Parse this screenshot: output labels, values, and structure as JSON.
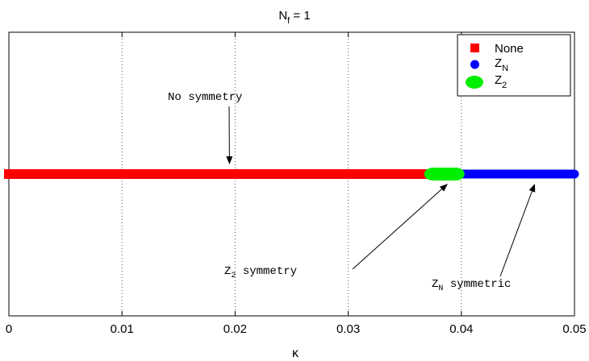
{
  "chart_data": {
    "type": "scatter",
    "title": {
      "base": "N",
      "sub": "f",
      "rest": " = 1"
    },
    "xlabel": "κ",
    "ylabel": "",
    "xlim": [
      0,
      0.05
    ],
    "ylim": [
      0,
      1
    ],
    "xticks": [
      0,
      0.01,
      0.02,
      0.03,
      0.04,
      0.05
    ],
    "xtick_labels": [
      "0",
      "0.01",
      "0.02",
      "0.03",
      "0.04",
      "0.05"
    ],
    "grid": "x-dotted",
    "legend_position": "top-right",
    "series": [
      {
        "key": "none",
        "name": "None",
        "marker": "square",
        "color": "#ff0000",
        "x_range": [
          0,
          0.038
        ],
        "y": 0.5
      },
      {
        "key": "zn",
        "name": "Z",
        "name_sub": "N",
        "marker": "circle",
        "color": "#0000ff",
        "x_range": [
          0.039,
          0.05
        ],
        "y": 0.5
      },
      {
        "key": "z2",
        "name": "Z",
        "name_sub": "2",
        "marker": "circle",
        "color": "#00ee00",
        "x_range": [
          0.0375,
          0.0395
        ],
        "y": 0.5
      }
    ],
    "annotations": [
      {
        "key": "no-symmetry",
        "text": "No symmetry",
        "arrow_to": [
          0.0195,
          0.5
        ]
      },
      {
        "key": "z2-symmetry",
        "text_base": "Z",
        "text_sub": "2",
        "text_rest": " symmetry",
        "arrow_to": [
          0.0388,
          0.5
        ]
      },
      {
        "key": "zn-symmetric",
        "text_base": "Z",
        "text_sub": "N",
        "text_rest": " symmetric",
        "arrow_to": [
          0.0465,
          0.5
        ]
      }
    ]
  }
}
